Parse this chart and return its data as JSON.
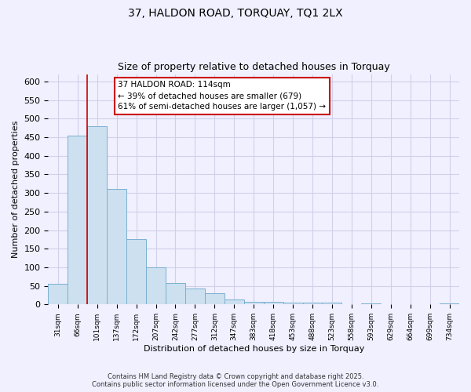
{
  "title": "37, HALDON ROAD, TORQUAY, TQ1 2LX",
  "subtitle": "Size of property relative to detached houses in Torquay",
  "xlabel": "Distribution of detached houses by size in Torquay",
  "ylabel": "Number of detached properties",
  "bar_labels": [
    "31sqm",
    "66sqm",
    "101sqm",
    "137sqm",
    "172sqm",
    "207sqm",
    "242sqm",
    "277sqm",
    "312sqm",
    "347sqm",
    "383sqm",
    "418sqm",
    "453sqm",
    "488sqm",
    "523sqm",
    "558sqm",
    "593sqm",
    "629sqm",
    "664sqm",
    "699sqm",
    "734sqm"
  ],
  "bar_values": [
    55,
    455,
    480,
    312,
    175,
    100,
    58,
    42,
    30,
    14,
    8,
    8,
    6,
    6,
    6,
    0,
    2,
    0,
    0,
    0,
    2
  ],
  "bar_color": "#cce0f0",
  "bar_edge_color": "#7ab0d0",
  "ylim": [
    0,
    620
  ],
  "yticks": [
    0,
    50,
    100,
    150,
    200,
    250,
    300,
    350,
    400,
    450,
    500,
    550,
    600
  ],
  "vline_x": 2.0,
  "vline_color": "#cc0000",
  "annotation_line1": "37 HALDON ROAD: 114sqm",
  "annotation_line2": "← 39% of detached houses are smaller (679)",
  "annotation_line3": "61% of semi-detached houses are larger (1,057) →",
  "annotation_box_color": "#ffffff",
  "annotation_box_edge": "#cc0000",
  "footer_line1": "Contains HM Land Registry data © Crown copyright and database right 2025.",
  "footer_line2": "Contains public sector information licensed under the Open Government Licence v3.0.",
  "background_color": "#f0f0ff",
  "grid_color": "#d0d0e8",
  "title_fontsize": 10,
  "subtitle_fontsize": 9
}
